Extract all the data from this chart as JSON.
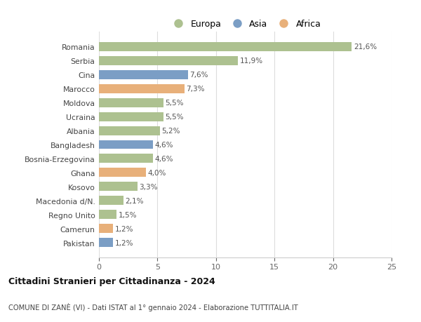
{
  "categories": [
    "Pakistan",
    "Camerun",
    "Regno Unito",
    "Macedonia d/N.",
    "Kosovo",
    "Ghana",
    "Bosnia-Erzegovina",
    "Bangladesh",
    "Albania",
    "Ucraina",
    "Moldova",
    "Marocco",
    "Cina",
    "Serbia",
    "Romania"
  ],
  "values": [
    1.2,
    1.2,
    1.5,
    2.1,
    3.3,
    4.0,
    4.6,
    4.6,
    5.2,
    5.5,
    5.5,
    7.3,
    7.6,
    11.9,
    21.6
  ],
  "continents": [
    "Asia",
    "Africa",
    "Europa",
    "Europa",
    "Europa",
    "Africa",
    "Europa",
    "Asia",
    "Europa",
    "Europa",
    "Europa",
    "Africa",
    "Asia",
    "Europa",
    "Europa"
  ],
  "labels": [
    "1,2%",
    "1,2%",
    "1,5%",
    "2,1%",
    "3,3%",
    "4,0%",
    "4,6%",
    "4,6%",
    "5,2%",
    "5,5%",
    "5,5%",
    "7,3%",
    "7,6%",
    "11,9%",
    "21,6%"
  ],
  "colors": {
    "Europa": "#adc190",
    "Asia": "#7b9ec5",
    "Africa": "#e8b07a"
  },
  "title": "Cittadini Stranieri per Cittadinanza - 2024",
  "subtitle": "COMUNE DI ZANÈ (VI) - Dati ISTAT al 1° gennaio 2024 - Elaborazione TUTTITALIA.IT",
  "xlim": [
    0,
    25
  ],
  "xticks": [
    0,
    5,
    10,
    15,
    20,
    25
  ],
  "background_color": "#ffffff",
  "grid_color": "#dddddd",
  "bar_height": 0.65
}
